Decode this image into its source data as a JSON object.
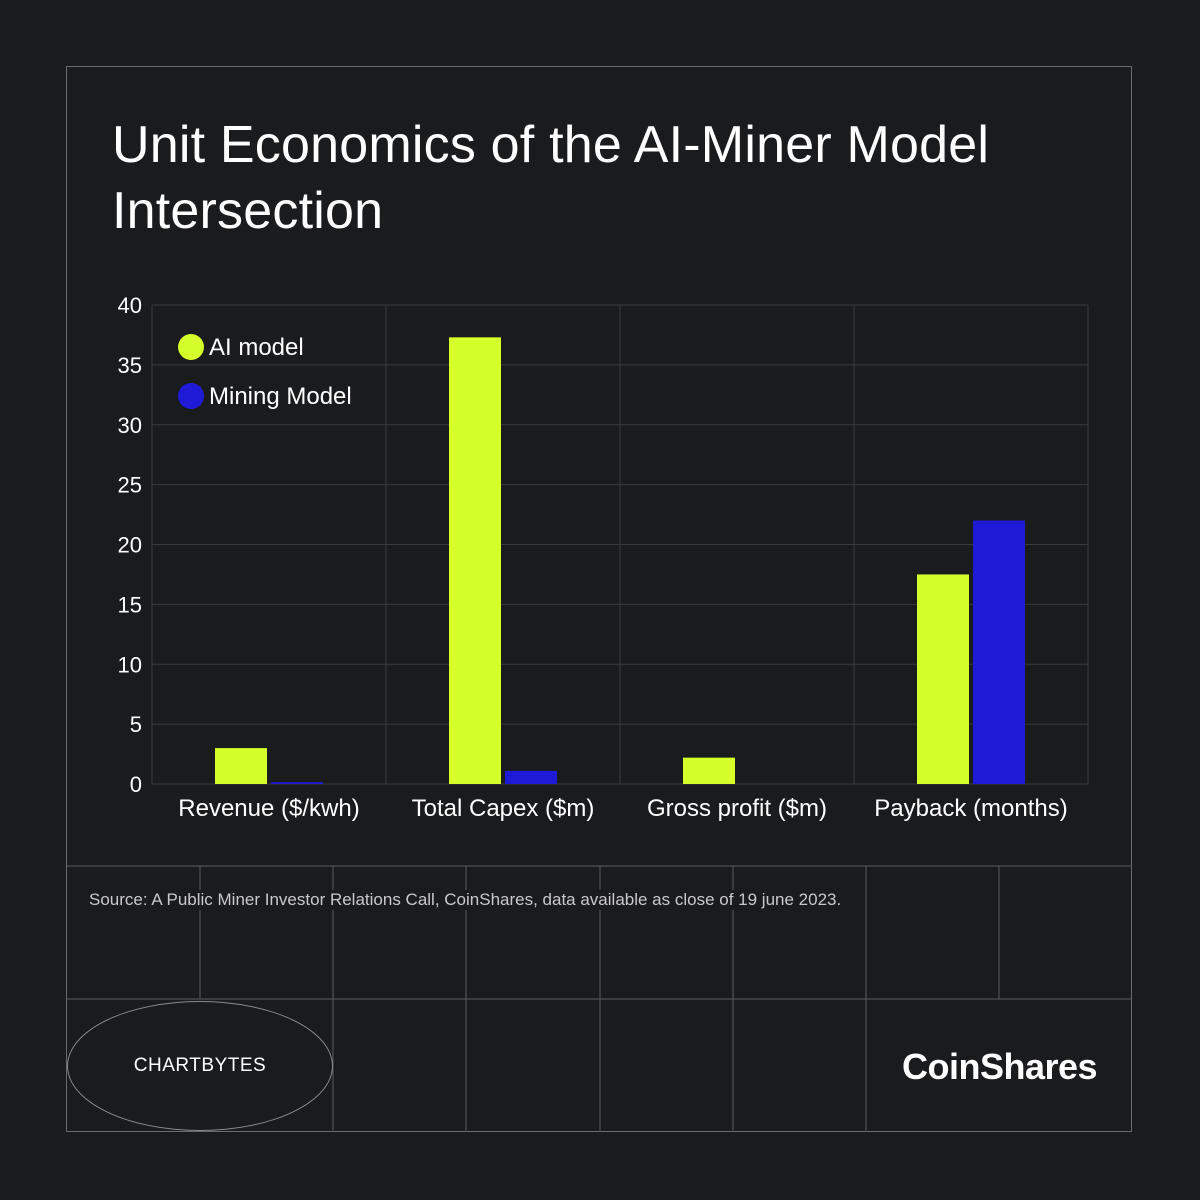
{
  "header": {
    "title": "Unit Economics of the AI-Miner Model Intersection"
  },
  "footer": {
    "source": "Source: A Public Miner Investor Relations Call, CoinShares, data available as close of 19 june 2023.",
    "badge": "CHARTBYTES",
    "brand": "CoinShares"
  },
  "colors": {
    "background": "#1a1b1d",
    "ai_model": "#d4ff2a",
    "mining_model": "#1f1ad6",
    "grid": "#3a3b3d"
  },
  "chart_data": {
    "type": "bar",
    "title": "Unit Economics of the AI-Miner Model Intersection",
    "xlabel": "",
    "ylabel": "",
    "categories": [
      "Revenue ($/kwh)",
      "Total Capex ($m)",
      "Gross profit ($m)",
      "Payback (months)"
    ],
    "series": [
      {
        "name": "AI model",
        "color": "#d4ff2a",
        "values": [
          3.0,
          37.3,
          2.2,
          17.5
        ]
      },
      {
        "name": "Mining Model",
        "color": "#1f1ad6",
        "values": [
          0.15,
          1.1,
          0,
          22.0
        ]
      }
    ],
    "ylim": [
      0,
      40
    ],
    "yticks": [
      0,
      5,
      10,
      15,
      20,
      25,
      30,
      35,
      40
    ],
    "grid": true,
    "legend_position": "top-left"
  }
}
